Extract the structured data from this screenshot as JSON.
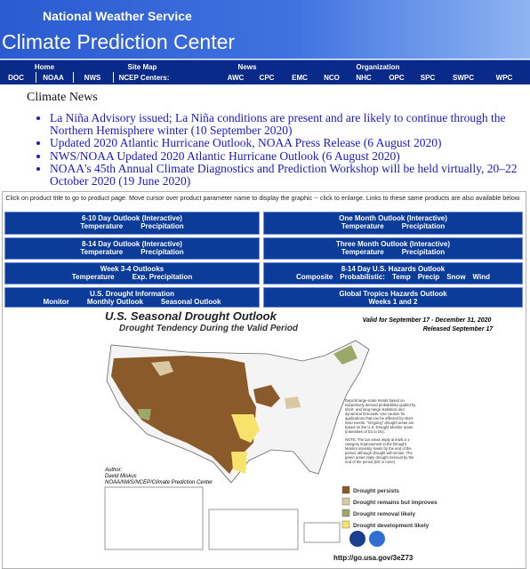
{
  "header": {
    "agency": "National Weather Service",
    "title": "Climate Prediction Center"
  },
  "nav": {
    "top": [
      "Home",
      "Site Map",
      "News",
      "Organization"
    ],
    "links": [
      "DOC",
      "NOAA",
      "NWS",
      "NCEP Centers:",
      "AWC",
      "CPC",
      "EMC",
      "NCO",
      "NHC",
      "OPC",
      "SPC",
      "SWPC",
      "WPC"
    ]
  },
  "news": {
    "heading": "Climate News",
    "items": [
      "La Niña Advisory issued; La Niña conditions are present and are likely to continue through the Northern Hemisphere winter (10 September 2020)",
      "Updated 2020 Atlantic Hurricane Outlook, NOAA Press Release (6 August 2020)",
      "NWS/NOAA Updated 2020 Atlantic Hurricane Outlook (6 August 2020)",
      "NOAA's 45th Annual Climate Diagnostics and Prediction Workshop will be held virtually, 20–22 October 2020 (19 June 2020)"
    ]
  },
  "products": {
    "intro": "Click on product title to go to product page. Move cursor over product parameter name to display the graphic -- click to enlarge. Links to these same products are also available below.",
    "buttons": [
      {
        "title": "6-10 Day Outlook   (Interactive)",
        "links": [
          "Temperature",
          "Precipitation"
        ]
      },
      {
        "title": "One Month Outlook   (Interactive)",
        "links": [
          "Temperature",
          "Precipitation"
        ]
      },
      {
        "title": "8-14 Day Outlook   (Interactive)",
        "links": [
          "Temperature",
          "Precipitation"
        ]
      },
      {
        "title": "Three Month Outlook   (Interactive)",
        "links": [
          "Temperature",
          "Precipitation"
        ]
      },
      {
        "title": "Week 3-4 Outlooks",
        "links": [
          "Temperature",
          "Exp. Precipitation"
        ]
      },
      {
        "title": "8-14 Day U.S. Hazards Outlook",
        "links": [
          "Composite",
          "Probabilistic:",
          "Temp",
          "Precip",
          "Snow",
          "Wind"
        ]
      },
      {
        "title": "U.S. Drought Information",
        "links": [
          "Monitor",
          "Monthly Outlook",
          "Seasonal Outlook"
        ]
      },
      {
        "title": "Global Tropics Hazards Outlook",
        "links": [
          "Weeks 1 and 2"
        ]
      }
    ]
  },
  "map": {
    "title": "U.S. Seasonal Drought Outlook",
    "subtitle": "Drought Tendency During the Valid Period",
    "valid": "Valid for September 17 - December 31, 2020",
    "released": "Released September 17",
    "description": "Depicts large-scale trends based on subjectively derived probabilities guided by short- and long-range statistical and dynamical forecasts. Use caution for applications that can be affected by short lived events. \"Ongoing\" drought areas are based on the U.S. Drought Monitor areas (intensities of D1 to D4).",
    "note": "NOTE: The tan areas imply at least a 1-category improvement in the Drought Monitor intensity levels by the end of the period, although drought will remain. The green areas imply drought removal by the end of the period (D0 or none).",
    "author_label": "Author:",
    "author": "David Miskus",
    "org": "NOAA/NWS/NCEP/Climate Prediction Center",
    "legend": [
      "Drought persists",
      "Drought remains but improves",
      "Drought removal likely",
      "Drought development likely"
    ],
    "url": "http://go.usa.gov/3eZ73"
  }
}
